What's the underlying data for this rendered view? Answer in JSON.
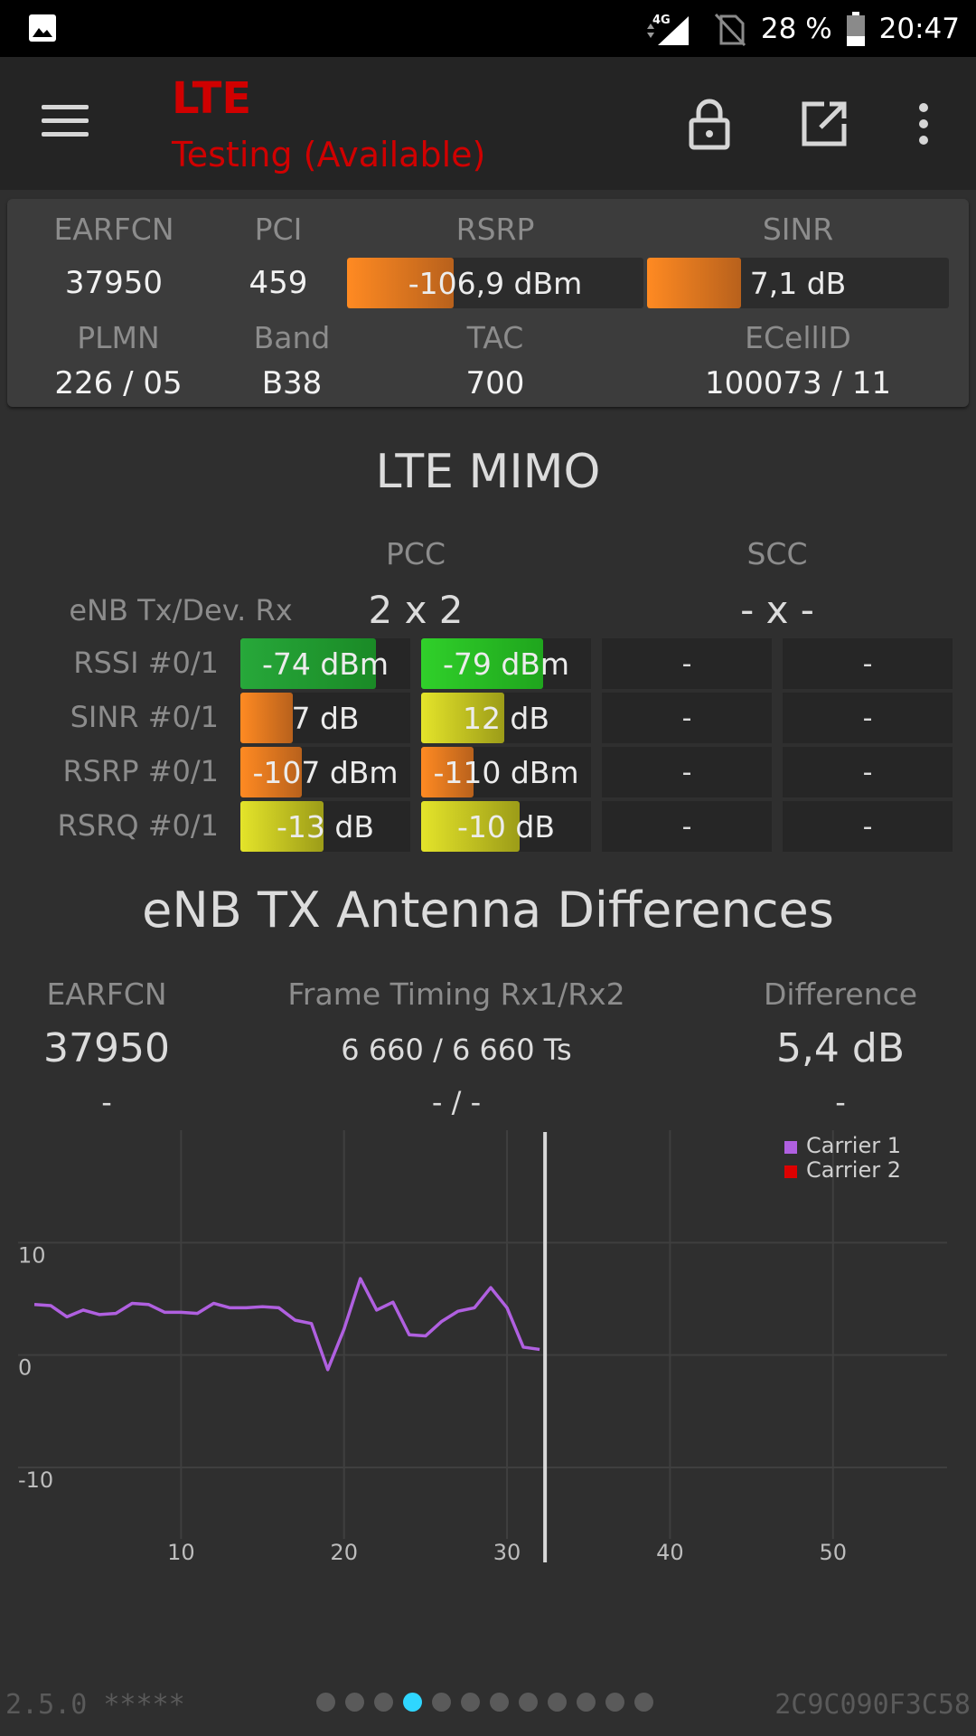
{
  "status_bar": {
    "network": "4G",
    "battery": "28 %",
    "time": "20:47"
  },
  "toolbar": {
    "title": "LTE",
    "subtitle": "Testing (Available)"
  },
  "serving_cell": {
    "earfcn_label": "EARFCN",
    "earfcn": "37950",
    "pci_label": "PCI",
    "pci": "459",
    "rsrp_label": "RSRP",
    "rsrp": "-106,9 dBm",
    "rsrp_level": 0.36,
    "sinr_label": "SINR",
    "sinr": "7,1 dB",
    "sinr_level": 0.31,
    "plmn_label": "PLMN",
    "plmn": "226 / 05",
    "band_label": "Band",
    "band": "B38",
    "tac_label": "TAC",
    "tac": "700",
    "ecellid_label": "ECellID",
    "ecellid": "100073 / 11"
  },
  "mimo": {
    "title": "LTE MIMO",
    "pcc_label": "PCC",
    "scc_label": "SCC",
    "enb_label": "eNB Tx/Dev. Rx",
    "pcc_config": "2 x 2",
    "scc_config": "- x -",
    "rows": [
      {
        "label": "RSSI #0/1",
        "pcc0": "-74 dBm",
        "pcc0_level": 0.8,
        "pcc1": "-79 dBm",
        "pcc1_level": 0.72,
        "scc0": "-",
        "scc1": "-"
      },
      {
        "label": "SINR #0/1",
        "pcc0": "7 dB",
        "pcc0_level": 0.31,
        "pcc1": "12 dB",
        "pcc1_level": 0.49,
        "scc0": "-",
        "scc1": "-"
      },
      {
        "label": "RSRP #0/1",
        "pcc0": "-107 dBm",
        "pcc0_level": 0.36,
        "pcc1": "-110 dBm",
        "pcc1_level": 0.31,
        "scc0": "-",
        "scc1": "-"
      },
      {
        "label": "RSRQ #0/1",
        "pcc0": "-13 dB",
        "pcc0_level": 0.49,
        "pcc1": "-10 dB",
        "pcc1_level": 0.58,
        "scc0": "-",
        "scc1": "-"
      }
    ]
  },
  "antenna": {
    "title": "eNB TX Antenna Differences",
    "earfcn_label": "EARFCN",
    "timing_label": "Frame Timing Rx1/Rx2",
    "diff_label": "Difference",
    "row1": {
      "earfcn": "37950",
      "timing": "6 660 / 6 660 Ts",
      "diff": "5,4 dB"
    },
    "row2": {
      "earfcn": "-",
      "timing": "- / -",
      "diff": "-"
    }
  },
  "chart_data": {
    "type": "line",
    "title": "",
    "xlabel": "",
    "ylabel": "",
    "xlim": [
      0,
      57
    ],
    "ylim": [
      -17,
      20
    ],
    "x_ticks": [
      10,
      20,
      30,
      40,
      50
    ],
    "y_ticks": [
      10,
      0,
      -10
    ],
    "grid": true,
    "legend_position": "top-right",
    "cursor_x": 32,
    "series": [
      {
        "name": "Carrier 1",
        "color": "#b060e0",
        "x": [
          1,
          2,
          3,
          4,
          5,
          6,
          7,
          8,
          9,
          10,
          11,
          12,
          13,
          14,
          15,
          16,
          17,
          18,
          19,
          20,
          21,
          22,
          23,
          24,
          25,
          26,
          27,
          28,
          29,
          30,
          31,
          32
        ],
        "values": [
          4.5,
          4.4,
          3.4,
          4.0,
          3.6,
          3.7,
          4.6,
          4.5,
          3.8,
          3.8,
          3.7,
          4.6,
          4.2,
          4.2,
          4.3,
          4.2,
          3.1,
          2.8,
          -1.3,
          2.3,
          6.8,
          4.0,
          4.7,
          1.8,
          1.7,
          3.0,
          3.9,
          4.2,
          6.0,
          4.2,
          0.7,
          0.5
        ]
      },
      {
        "name": "Carrier 2",
        "color": "#dd0000",
        "x": [],
        "values": []
      }
    ]
  },
  "footer": {
    "version": "2.5.0 *****",
    "device_id": "2C9C090F3C58",
    "page_count": 12,
    "active_page": 4
  }
}
